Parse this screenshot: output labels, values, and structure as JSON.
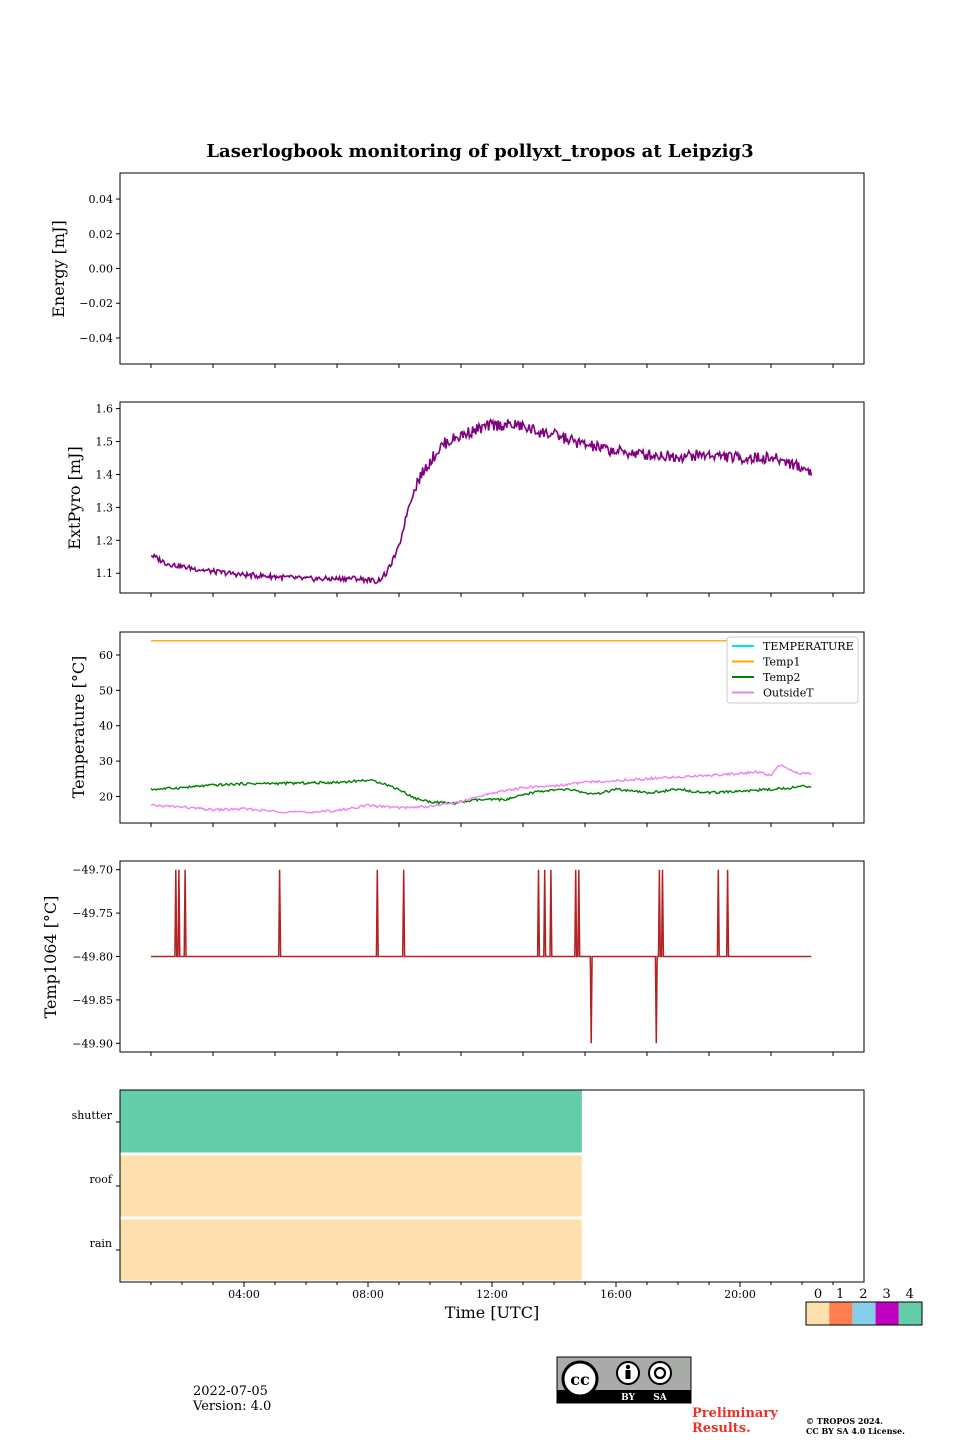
{
  "page": {
    "title": "Laserlogbook monitoring of pollyxt_tropos at Leipzig3",
    "date": "2022-07-05",
    "version": "Version: 4.0",
    "preliminary_line1": "Preliminary",
    "preliminary_line2": "Results.",
    "copyright_line1": "© TROPOS 2024.",
    "copyright_line2": "CC BY SA 4.0 License.",
    "cc_badge": {
      "cc": "cc",
      "by": "BY",
      "sa": "SA"
    }
  },
  "chart_data": [
    {
      "type": "line",
      "name": "energy",
      "ylabel": "Energy [mJ]",
      "ylim": [
        -0.055,
        0.055
      ],
      "yticks": [
        0.04,
        0.02,
        0.0,
        -0.02,
        -0.04
      ],
      "ytick_labels": [
        "0.04",
        "0.02",
        "0.00",
        "−0.02",
        "−0.04"
      ],
      "series": []
    },
    {
      "type": "line",
      "name": "extpyro",
      "ylabel": "ExtPyro [mJ]",
      "ylim": [
        1.04,
        1.62
      ],
      "yticks": [
        1.1,
        1.2,
        1.3,
        1.4,
        1.5,
        1.6
      ],
      "ytick_labels": [
        "1.1",
        "1.2",
        "1.3",
        "1.4",
        "1.5",
        "1.6"
      ],
      "series": [
        {
          "name": "ExtPyro",
          "color": "#800080",
          "x": [
            1.0,
            1.5,
            2.0,
            3.0,
            4.0,
            5.0,
            6.0,
            7.0,
            7.5,
            8.0,
            8.3,
            8.6,
            9.0,
            9.3,
            9.6,
            10.0,
            10.4,
            10.8,
            11.3,
            12.0,
            12.8,
            13.5,
            14.0,
            15.0,
            16.0,
            17.0,
            18.0,
            19.0,
            20.0,
            21.0,
            21.5,
            22.0,
            22.3
          ],
          "y": [
            1.155,
            1.13,
            1.12,
            1.105,
            1.095,
            1.09,
            1.083,
            1.083,
            1.085,
            1.08,
            1.075,
            1.1,
            1.18,
            1.3,
            1.38,
            1.44,
            1.49,
            1.51,
            1.53,
            1.55,
            1.55,
            1.53,
            1.52,
            1.49,
            1.47,
            1.46,
            1.455,
            1.46,
            1.45,
            1.45,
            1.44,
            1.42,
            1.41
          ]
        }
      ]
    },
    {
      "type": "line",
      "name": "temperature",
      "ylabel": "Temperature [°C]",
      "ylim": [
        12.5,
        66.5
      ],
      "yticks": [
        20,
        30,
        40,
        50,
        60
      ],
      "ytick_labels": [
        "20",
        "30",
        "40",
        "50",
        "60"
      ],
      "legend": [
        "TEMPERATURE",
        "Temp1",
        "Temp2",
        "OutsideT"
      ],
      "legend_position": "top-right",
      "series": [
        {
          "name": "TEMPERATURE",
          "color": "#00e5e5",
          "x": [],
          "y": []
        },
        {
          "name": "Temp1",
          "color": "#ffa500",
          "x": [
            1.0,
            22.3
          ],
          "y": [
            64.0,
            64.0
          ]
        },
        {
          "name": "Temp2",
          "color": "#008000",
          "x": [
            1.0,
            2.0,
            3.0,
            4.0,
            5.0,
            6.0,
            7.0,
            8.0,
            8.4,
            9.0,
            9.5,
            10.0,
            10.7,
            11.5,
            12.5,
            13.5,
            14.5,
            15.3,
            16.0,
            16.5,
            17.0,
            17.5,
            18.0,
            19.0,
            20.0,
            21.0,
            22.0,
            22.3
          ],
          "y": [
            22.0,
            22.5,
            23.2,
            23.6,
            23.7,
            23.8,
            24.0,
            24.6,
            24.0,
            22.0,
            19.5,
            18.5,
            18.0,
            19.0,
            19.2,
            21.5,
            22.0,
            20.5,
            22.0,
            21.5,
            21.0,
            21.5,
            22.0,
            21.0,
            21.5,
            22.0,
            22.8,
            23.0
          ]
        },
        {
          "name": "OutsideT",
          "color": "#ee82ee",
          "x": [
            1.0,
            2.0,
            3.0,
            4.0,
            5.0,
            6.0,
            7.0,
            8.0,
            9.0,
            10.0,
            11.0,
            12.0,
            13.0,
            14.0,
            15.0,
            16.0,
            17.0,
            18.0,
            19.0,
            20.0,
            20.5,
            21.0,
            21.3,
            21.7,
            22.0,
            22.3
          ],
          "y": [
            17.5,
            17.0,
            16.2,
            16.5,
            15.8,
            15.5,
            16.0,
            17.5,
            16.8,
            17.2,
            18.5,
            21.0,
            22.5,
            23.0,
            24.0,
            24.5,
            25.0,
            25.5,
            26.0,
            26.5,
            27.0,
            26.0,
            29.0,
            27.0,
            26.5,
            26.5
          ]
        }
      ]
    },
    {
      "type": "line",
      "name": "temp1064",
      "ylabel": "Temp1064 [°C]",
      "ylim": [
        -49.91,
        -49.69
      ],
      "yticks": [
        -49.7,
        -49.75,
        -49.8,
        -49.85,
        -49.9
      ],
      "ytick_labels": [
        "−49.70",
        "−49.75",
        "−49.80",
        "−49.85",
        "−49.90"
      ],
      "series": [
        {
          "name": "Temp1064",
          "color": "#b22222",
          "baseline": -49.8,
          "spikes": [
            {
              "t": 1.8,
              "v": -49.7
            },
            {
              "t": 1.9,
              "v": -49.7
            },
            {
              "t": 2.1,
              "v": -49.7
            },
            {
              "t": 5.15,
              "v": -49.7
            },
            {
              "t": 8.3,
              "v": -49.7
            },
            {
              "t": 9.15,
              "v": -49.7
            },
            {
              "t": 13.5,
              "v": -49.7
            },
            {
              "t": 13.7,
              "v": -49.7
            },
            {
              "t": 13.9,
              "v": -49.7
            },
            {
              "t": 14.7,
              "v": -49.7
            },
            {
              "t": 14.8,
              "v": -49.7
            },
            {
              "t": 15.2,
              "v": -49.9
            },
            {
              "t": 17.3,
              "v": -49.9
            },
            {
              "t": 17.4,
              "v": -49.7
            },
            {
              "t": 17.5,
              "v": -49.7
            },
            {
              "t": 19.3,
              "v": -49.7
            },
            {
              "t": 19.6,
              "v": -49.7
            }
          ],
          "x_range": [
            1.0,
            22.3
          ]
        }
      ]
    },
    {
      "type": "heatmap",
      "name": "status",
      "xlabel": "Time [UTC]",
      "xlim": [
        0,
        24
      ],
      "xticks": [
        4,
        8,
        12,
        16,
        20
      ],
      "xtick_labels": [
        "04:00",
        "08:00",
        "12:00",
        "16:00",
        "20:00"
      ],
      "rows": [
        "shutter",
        "roof",
        "rain"
      ],
      "segments": [
        {
          "row": "shutter",
          "start": 0,
          "end": 14.9,
          "value": 4
        },
        {
          "row": "roof",
          "start": 0,
          "end": 14.9,
          "value": 0
        },
        {
          "row": "rain",
          "start": 0,
          "end": 14.9,
          "value": 0
        }
      ],
      "colorbar": {
        "labels": [
          "0",
          "1",
          "2",
          "3",
          "4"
        ],
        "colors": [
          "#fde0ae",
          "#ff7f50",
          "#87ceeb",
          "#c000c0",
          "#66cdaa"
        ]
      }
    }
  ]
}
